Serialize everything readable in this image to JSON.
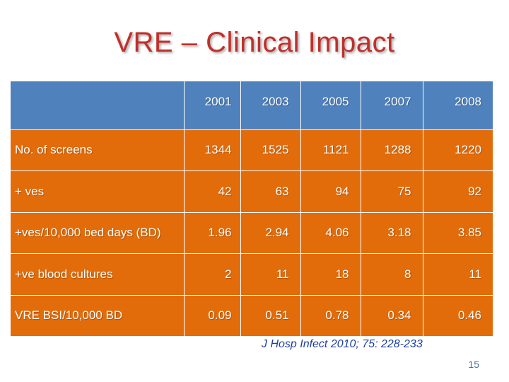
{
  "title": "VRE – Clinical Impact",
  "table": {
    "headers": [
      "",
      "2001",
      "2003",
      "2005",
      "2007",
      "2008"
    ],
    "rows": [
      {
        "label": "No. of screens",
        "values": [
          "1344",
          "1525",
          "1121",
          "1288",
          "1220"
        ]
      },
      {
        "label": "+ ves",
        "values": [
          "42",
          "63",
          "94",
          "75",
          "92"
        ]
      },
      {
        "label": "+ves/10,000 bed days (BD)",
        "values": [
          "1.96",
          "2.94",
          "4.06",
          "3.18",
          "3.85"
        ]
      },
      {
        "label": "+ve blood cultures",
        "values": [
          "2",
          "11",
          "18",
          "8",
          "11"
        ]
      },
      {
        "label": "VRE BSI/10,000 BD",
        "values": [
          "0.09",
          "0.51",
          "0.78",
          "0.34",
          "0.46"
        ]
      }
    ]
  },
  "reference": "J Hosp Infect 2010; 75: 228-233",
  "page_number": "15",
  "colors": {
    "header_bg": "#4f81bd",
    "row_bg": "#e36c0a",
    "title": "#c0302a"
  }
}
